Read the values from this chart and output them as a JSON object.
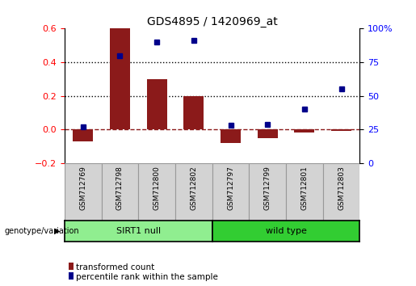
{
  "title": "GDS4895 / 1420969_at",
  "samples": [
    "GSM712769",
    "GSM712798",
    "GSM712800",
    "GSM712802",
    "GSM712797",
    "GSM712799",
    "GSM712801",
    "GSM712803"
  ],
  "transformed_count": [
    -0.07,
    0.6,
    0.3,
    0.2,
    -0.08,
    -0.05,
    -0.02,
    -0.01
  ],
  "percentile_rank": [
    27,
    80,
    90,
    91,
    28,
    29,
    40,
    55
  ],
  "bar_color": "#8B1A1A",
  "dot_color": "#00008B",
  "ylim_left": [
    -0.2,
    0.6
  ],
  "ylim_right": [
    0,
    100
  ],
  "yticks_left": [
    -0.2,
    0.0,
    0.2,
    0.4,
    0.6
  ],
  "yticks_right": [
    0,
    25,
    50,
    75,
    100
  ],
  "ytick_labels_right": [
    "0",
    "25",
    "50",
    "75",
    "100%"
  ],
  "dotted_lines": [
    0.2,
    0.4
  ],
  "groups": [
    {
      "label": "SIRT1 null",
      "indices": [
        0,
        1,
        2,
        3
      ],
      "color": "#90EE90"
    },
    {
      "label": "wild type",
      "indices": [
        4,
        5,
        6,
        7
      ],
      "color": "#32CD32"
    }
  ],
  "genotype_label": "genotype/variation",
  "legend_bar_label": "transformed count",
  "legend_dot_label": "percentile rank within the sample",
  "background_color": "#FFFFFF"
}
